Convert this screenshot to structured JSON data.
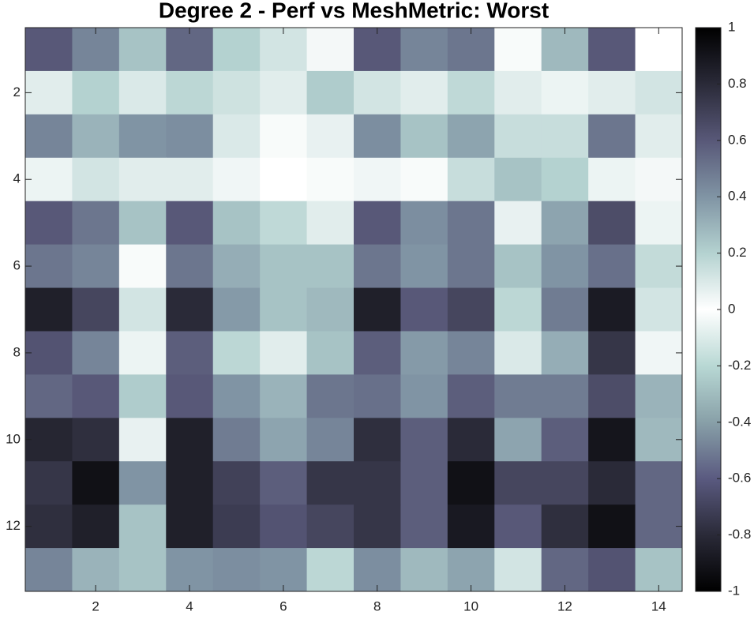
{
  "chart_data": {
    "type": "heatmap",
    "title": "Degree 2 - Perf vs MeshMetric: Worst",
    "values": [
      [
        0.6,
        0.45,
        0.25,
        0.55,
        0.2,
        0.12,
        0.03,
        0.6,
        0.45,
        0.5,
        0.02,
        0.28,
        0.6,
        0.0
      ],
      [
        0.08,
        0.2,
        0.1,
        0.18,
        0.13,
        0.08,
        0.22,
        0.12,
        0.08,
        0.17,
        0.08,
        0.05,
        0.08,
        0.12
      ],
      [
        0.45,
        0.3,
        0.4,
        0.42,
        0.1,
        0.02,
        0.06,
        0.42,
        0.25,
        0.35,
        0.15,
        0.15,
        0.5,
        0.08
      ],
      [
        0.05,
        0.12,
        0.08,
        0.08,
        0.04,
        0.0,
        0.02,
        0.04,
        0.02,
        0.15,
        0.25,
        0.2,
        0.05,
        0.03
      ],
      [
        0.6,
        0.5,
        0.25,
        0.6,
        0.25,
        0.17,
        0.08,
        0.6,
        0.42,
        0.5,
        0.06,
        0.35,
        0.65,
        0.05
      ],
      [
        0.5,
        0.45,
        0.02,
        0.5,
        0.32,
        0.25,
        0.25,
        0.5,
        0.4,
        0.5,
        0.25,
        0.4,
        0.52,
        0.16
      ],
      [
        0.85,
        0.68,
        0.12,
        0.8,
        0.38,
        0.25,
        0.28,
        0.85,
        0.6,
        0.68,
        0.18,
        0.48,
        0.87,
        0.12
      ],
      [
        0.62,
        0.45,
        0.05,
        0.58,
        0.18,
        0.08,
        0.25,
        0.58,
        0.38,
        0.45,
        0.1,
        0.32,
        0.75,
        0.04
      ],
      [
        0.55,
        0.6,
        0.22,
        0.6,
        0.4,
        0.3,
        0.5,
        0.52,
        0.4,
        0.58,
        0.48,
        0.48,
        0.65,
        0.3
      ],
      [
        0.82,
        0.78,
        0.06,
        0.85,
        0.48,
        0.35,
        0.45,
        0.78,
        0.58,
        0.8,
        0.35,
        0.58,
        0.9,
        0.28
      ],
      [
        0.75,
        0.92,
        0.4,
        0.85,
        0.7,
        0.58,
        0.75,
        0.75,
        0.58,
        0.92,
        0.68,
        0.68,
        0.8,
        0.55
      ],
      [
        0.78,
        0.85,
        0.25,
        0.85,
        0.72,
        0.62,
        0.68,
        0.75,
        0.58,
        0.88,
        0.6,
        0.78,
        0.92,
        0.55
      ],
      [
        0.45,
        0.3,
        0.25,
        0.4,
        0.42,
        0.4,
        0.18,
        0.42,
        0.28,
        0.35,
        0.12,
        0.55,
        0.62,
        0.25
      ]
    ],
    "xlim": [
      0.5,
      14.5
    ],
    "xticks": [
      2,
      4,
      6,
      8,
      10,
      12,
      14
    ],
    "ylim": [
      0.5,
      13.5
    ],
    "yticks": [
      2,
      4,
      6,
      8,
      10,
      12
    ],
    "clim": [
      -1,
      1
    ],
    "cticks": [
      -1,
      -0.8,
      -0.6,
      -0.4,
      -0.2,
      0,
      0.2,
      0.4,
      0.6,
      0.8,
      1
    ],
    "colormap": [
      "#000000",
      "#2a2a38",
      "#5a5a80",
      "#88a0a8",
      "#b8d8d4",
      "#ffffff",
      "#b4d2d0",
      "#8094a4",
      "#585878",
      "#2a2a38",
      "#000000"
    ]
  }
}
